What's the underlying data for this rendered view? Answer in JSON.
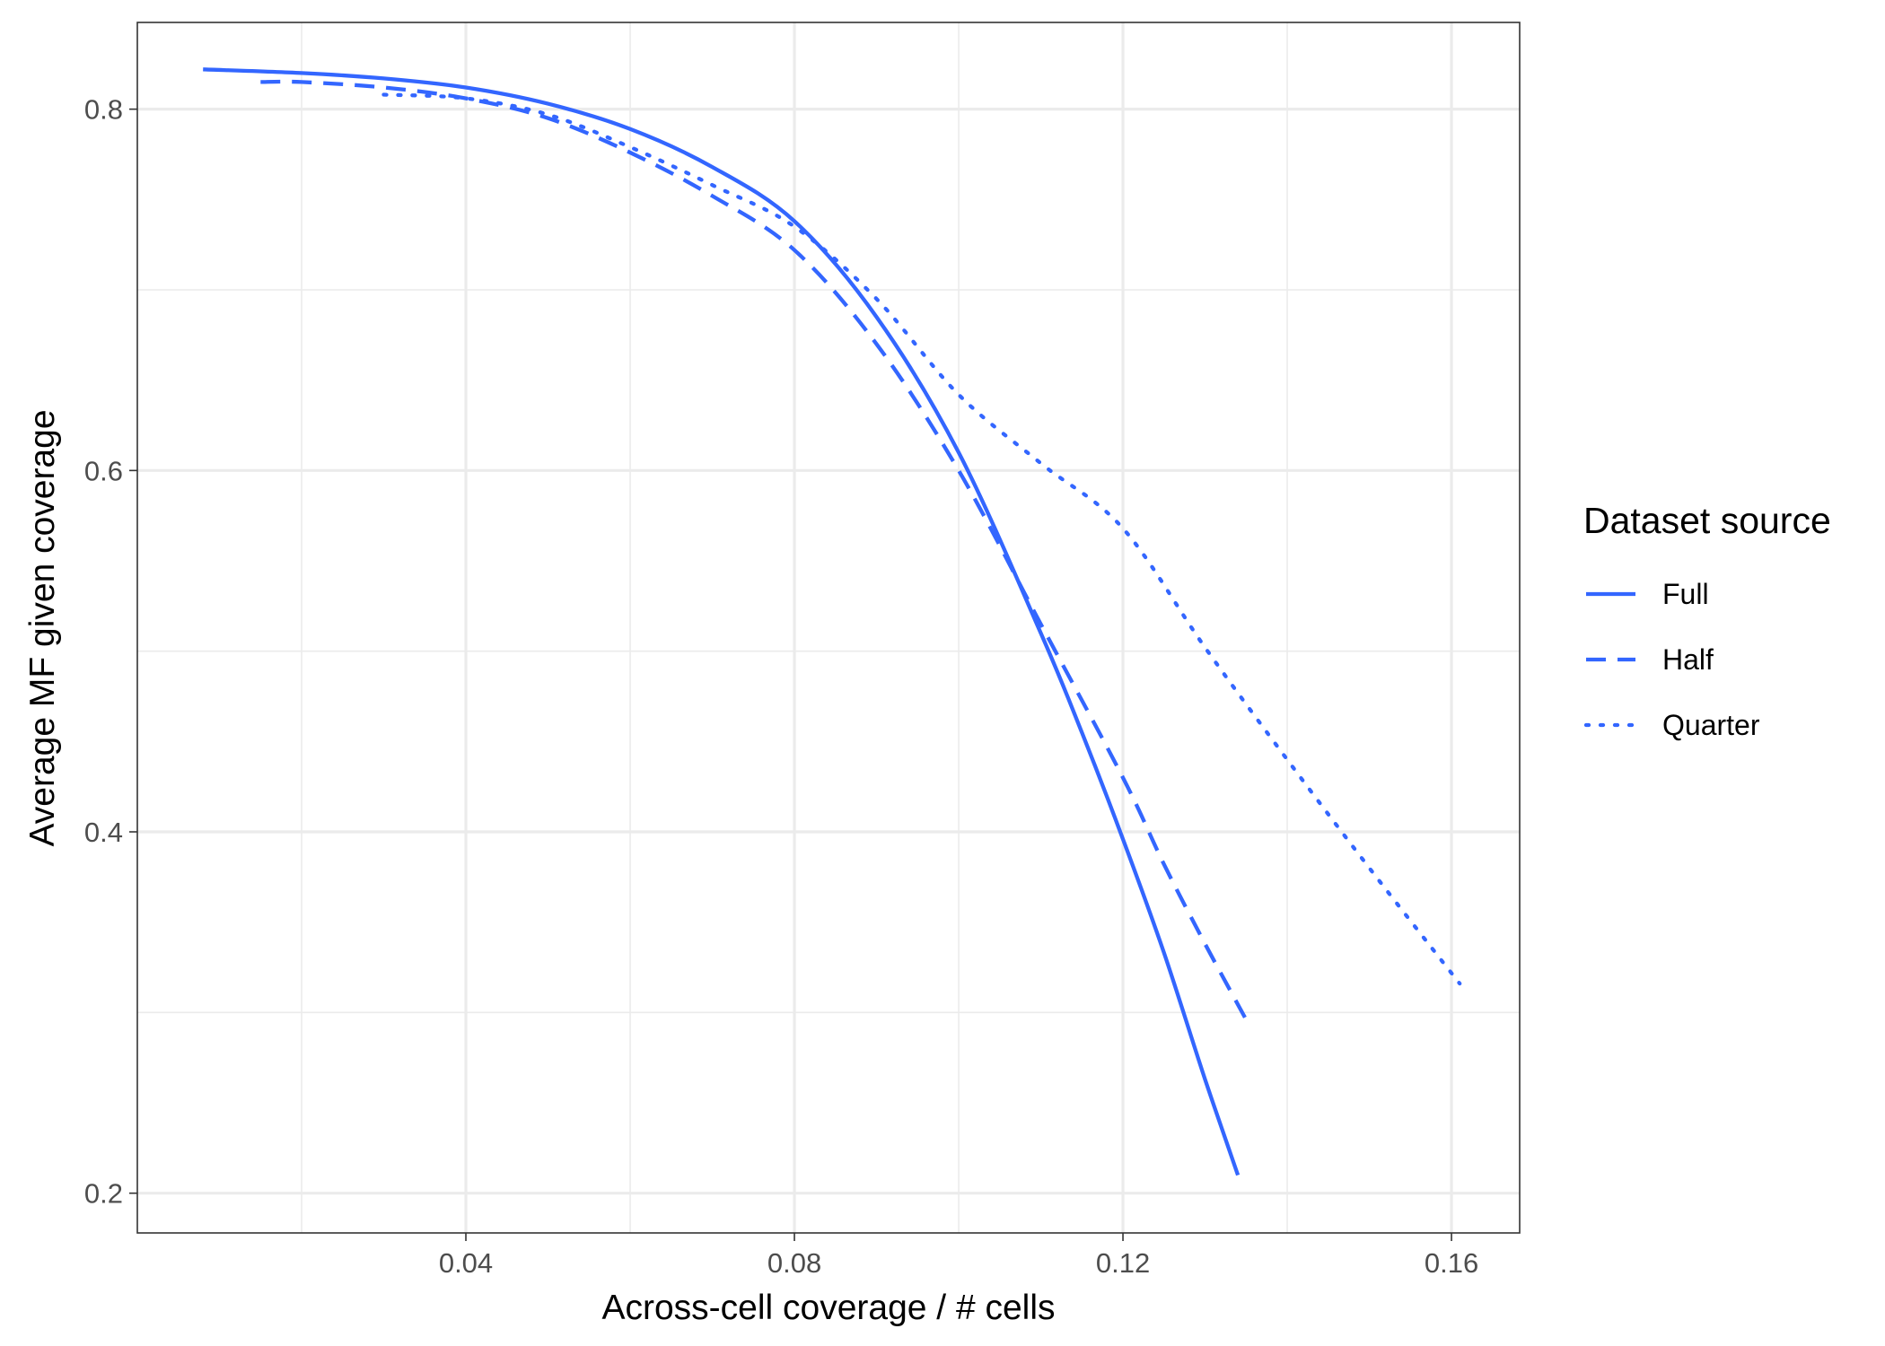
{
  "chart_data": {
    "type": "line",
    "title": "",
    "xlabel": "Across-cell coverage / # cells",
    "ylabel": "Average MF given coverage",
    "xlim": [
      0.0,
      0.1683
    ],
    "ylim": [
      0.178,
      0.848
    ],
    "x_ticks": [
      0.04,
      0.08,
      0.12,
      0.16
    ],
    "x_tick_labels": [
      "0.04",
      "0.08",
      "0.12",
      "0.16"
    ],
    "x_minor_ticks": [
      0.02,
      0.06,
      0.1,
      0.14
    ],
    "y_ticks": [
      0.2,
      0.4,
      0.6,
      0.8
    ],
    "y_tick_labels": [
      "0.2",
      "0.4",
      "0.6",
      "0.8"
    ],
    "y_minor_ticks": [
      0.3,
      0.5,
      0.7
    ],
    "grid": true,
    "line_color": "#3366FF",
    "legend": {
      "title": "Dataset source",
      "position": "right",
      "entries": [
        "Full",
        "Half",
        "Quarter"
      ]
    },
    "series": [
      {
        "name": "Full",
        "style": "solid",
        "x": [
          0.008,
          0.02,
          0.03,
          0.04,
          0.05,
          0.06,
          0.07,
          0.08,
          0.09,
          0.1,
          0.11,
          0.115,
          0.12,
          0.125,
          0.13,
          0.134
        ],
        "y": [
          0.822,
          0.82,
          0.817,
          0.812,
          0.803,
          0.789,
          0.768,
          0.738,
          0.685,
          0.61,
          0.51,
          0.455,
          0.396,
          0.333,
          0.263,
          0.21
        ]
      },
      {
        "name": "Half",
        "style": "dashed",
        "x": [
          0.015,
          0.02,
          0.03,
          0.04,
          0.05,
          0.06,
          0.07,
          0.08,
          0.09,
          0.1,
          0.11,
          0.12,
          0.125,
          0.13,
          0.135
        ],
        "y": [
          0.815,
          0.815,
          0.812,
          0.806,
          0.795,
          0.776,
          0.752,
          0.722,
          0.67,
          0.6,
          0.515,
          0.43,
          0.382,
          0.338,
          0.296
        ]
      },
      {
        "name": "Quarter",
        "style": "dotted",
        "x": [
          0.03,
          0.04,
          0.05,
          0.06,
          0.07,
          0.08,
          0.09,
          0.1,
          0.11,
          0.12,
          0.13,
          0.14,
          0.15,
          0.161
        ],
        "y": [
          0.808,
          0.806,
          0.797,
          0.779,
          0.758,
          0.735,
          0.695,
          0.642,
          0.604,
          0.568,
          0.502,
          0.44,
          0.38,
          0.316
        ]
      }
    ]
  }
}
